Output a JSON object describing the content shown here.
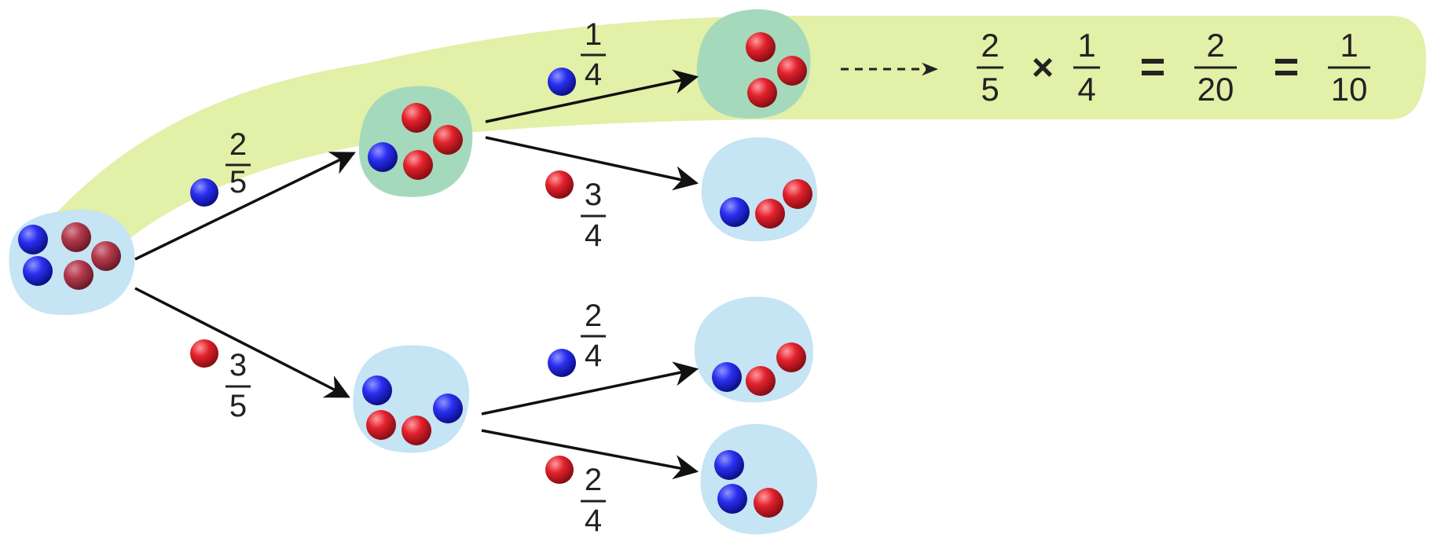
{
  "colors": {
    "highlight": "#e2f0a8",
    "blob": "#c5e4f4",
    "blob_highlighted": "#a5d9bb",
    "blue_ball": "#1a1fd6",
    "red_ball": "#dc1f2a",
    "dull_red_ball": "#b1384a",
    "arrow": "#111111"
  },
  "nodes": {
    "root": {
      "balls": [
        "blue",
        "red",
        "blue",
        "red"
      ]
    },
    "blue_first": {
      "balls": [
        "red",
        "red",
        "blue",
        "red"
      ]
    },
    "red_first": {
      "balls": [
        "blue",
        "blue",
        "red",
        "red"
      ]
    },
    "blue_blue": {
      "balls": [
        "red",
        "red",
        "red"
      ]
    },
    "blue_red": {
      "balls": [
        "blue",
        "red",
        "red"
      ]
    },
    "red_blue": {
      "balls": [
        "blue",
        "red",
        "red"
      ]
    },
    "red_red": {
      "balls": [
        "blue",
        "blue",
        "red"
      ]
    }
  },
  "branches": {
    "first_blue": {
      "ball": "blue",
      "numerator": "2",
      "denominator": "5"
    },
    "first_red": {
      "ball": "red",
      "numerator": "3",
      "denominator": "5"
    },
    "second_blue_blue": {
      "ball": "blue",
      "numerator": "1",
      "denominator": "4"
    },
    "second_blue_red": {
      "ball": "red",
      "numerator": "3",
      "denominator": "4"
    },
    "second_red_blue": {
      "ball": "blue",
      "numerator": "2",
      "denominator": "4"
    },
    "second_red_red": {
      "ball": "red",
      "numerator": "2",
      "denominator": "4"
    }
  },
  "equation": {
    "term1": {
      "numerator": "2",
      "denominator": "5"
    },
    "times": "×",
    "term2": {
      "numerator": "1",
      "denominator": "4"
    },
    "equals1": "=",
    "result1": {
      "numerator": "2",
      "denominator": "20"
    },
    "equals2": "=",
    "result2": {
      "numerator": "1",
      "denominator": "10"
    }
  }
}
